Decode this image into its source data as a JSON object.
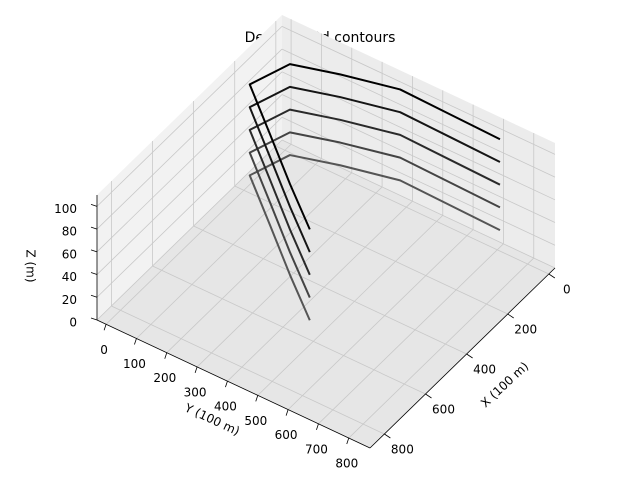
{
  "chart_data": {
    "type": "contour3d",
    "title": "Depth as 3d contours",
    "xlabel": "X (100 m)",
    "ylabel": "Y (100 m)",
    "zlabel": "Z (m)",
    "xlim": [
      -30,
      870
    ],
    "ylim": [
      -30,
      870
    ],
    "zlim": [
      0,
      110
    ],
    "xticks": [
      0,
      200,
      400,
      600,
      800
    ],
    "yticks": [
      0,
      100,
      200,
      300,
      400,
      500,
      600,
      700,
      800
    ],
    "zticks": [
      0,
      20,
      40,
      60,
      80,
      100
    ],
    "x": [
      611,
      490,
      353,
      217,
      85,
      40,
      -4,
      1,
      6
    ],
    "y": [
      496,
      349,
      190,
      31,
      74,
      209,
      377,
      545,
      713
    ],
    "contours": [
      {
        "level": 20,
        "color": "#555555"
      },
      {
        "level": 40,
        "color": "#444444"
      },
      {
        "level": 60,
        "color": "#2a2a2a"
      },
      {
        "level": 80,
        "color": "#151515"
      },
      {
        "level": 100,
        "color": "#000000"
      }
    ]
  }
}
